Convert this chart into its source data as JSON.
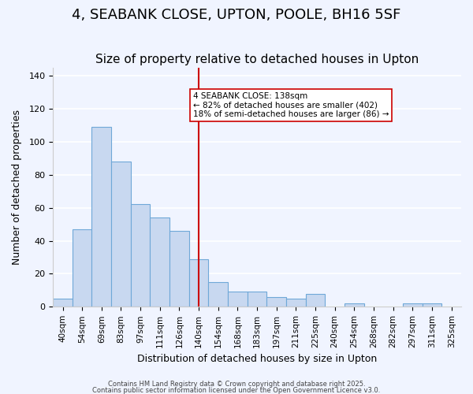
{
  "title": "4, SEABANK CLOSE, UPTON, POOLE, BH16 5SF",
  "subtitle": "Size of property relative to detached houses in Upton",
  "xlabel": "Distribution of detached houses by size in Upton",
  "ylabel": "Number of detached properties",
  "bar_values": [
    5,
    47,
    109,
    88,
    62,
    54,
    46,
    29,
    15,
    9,
    9,
    6,
    5,
    8,
    0,
    2,
    0,
    0,
    2,
    2,
    0
  ],
  "bar_labels": [
    "40sqm",
    "54sqm",
    "69sqm",
    "83sqm",
    "97sqm",
    "111sqm",
    "126sqm",
    "140sqm",
    "154sqm",
    "168sqm",
    "183sqm",
    "197sqm",
    "211sqm",
    "225sqm",
    "240sqm",
    "254sqm",
    "268sqm",
    "282sqm",
    "297sqm",
    "311sqm",
    "325sqm"
  ],
  "bar_color": "#c8d8f0",
  "bar_edge_color": "#6fa8d8",
  "bar_width": 1.0,
  "ylim": [
    0,
    145
  ],
  "yticks": [
    0,
    20,
    40,
    60,
    80,
    100,
    120,
    140
  ],
  "vline_x": 7,
  "vline_color": "#cc0000",
  "annotation_text": "4 SEABANK CLOSE: 138sqm\n← 82% of detached houses are smaller (402)\n18% of semi-detached houses are larger (86) →",
  "annotation_box_color": "#ffffff",
  "annotation_box_edge": "#cc0000",
  "background_color": "#f0f4ff",
  "grid_color": "#ffffff",
  "title_fontsize": 13,
  "subtitle_fontsize": 11,
  "footer_line1": "Contains HM Land Registry data © Crown copyright and database right 2025.",
  "footer_line2": "Contains public sector information licensed under the Open Government Licence v3.0."
}
